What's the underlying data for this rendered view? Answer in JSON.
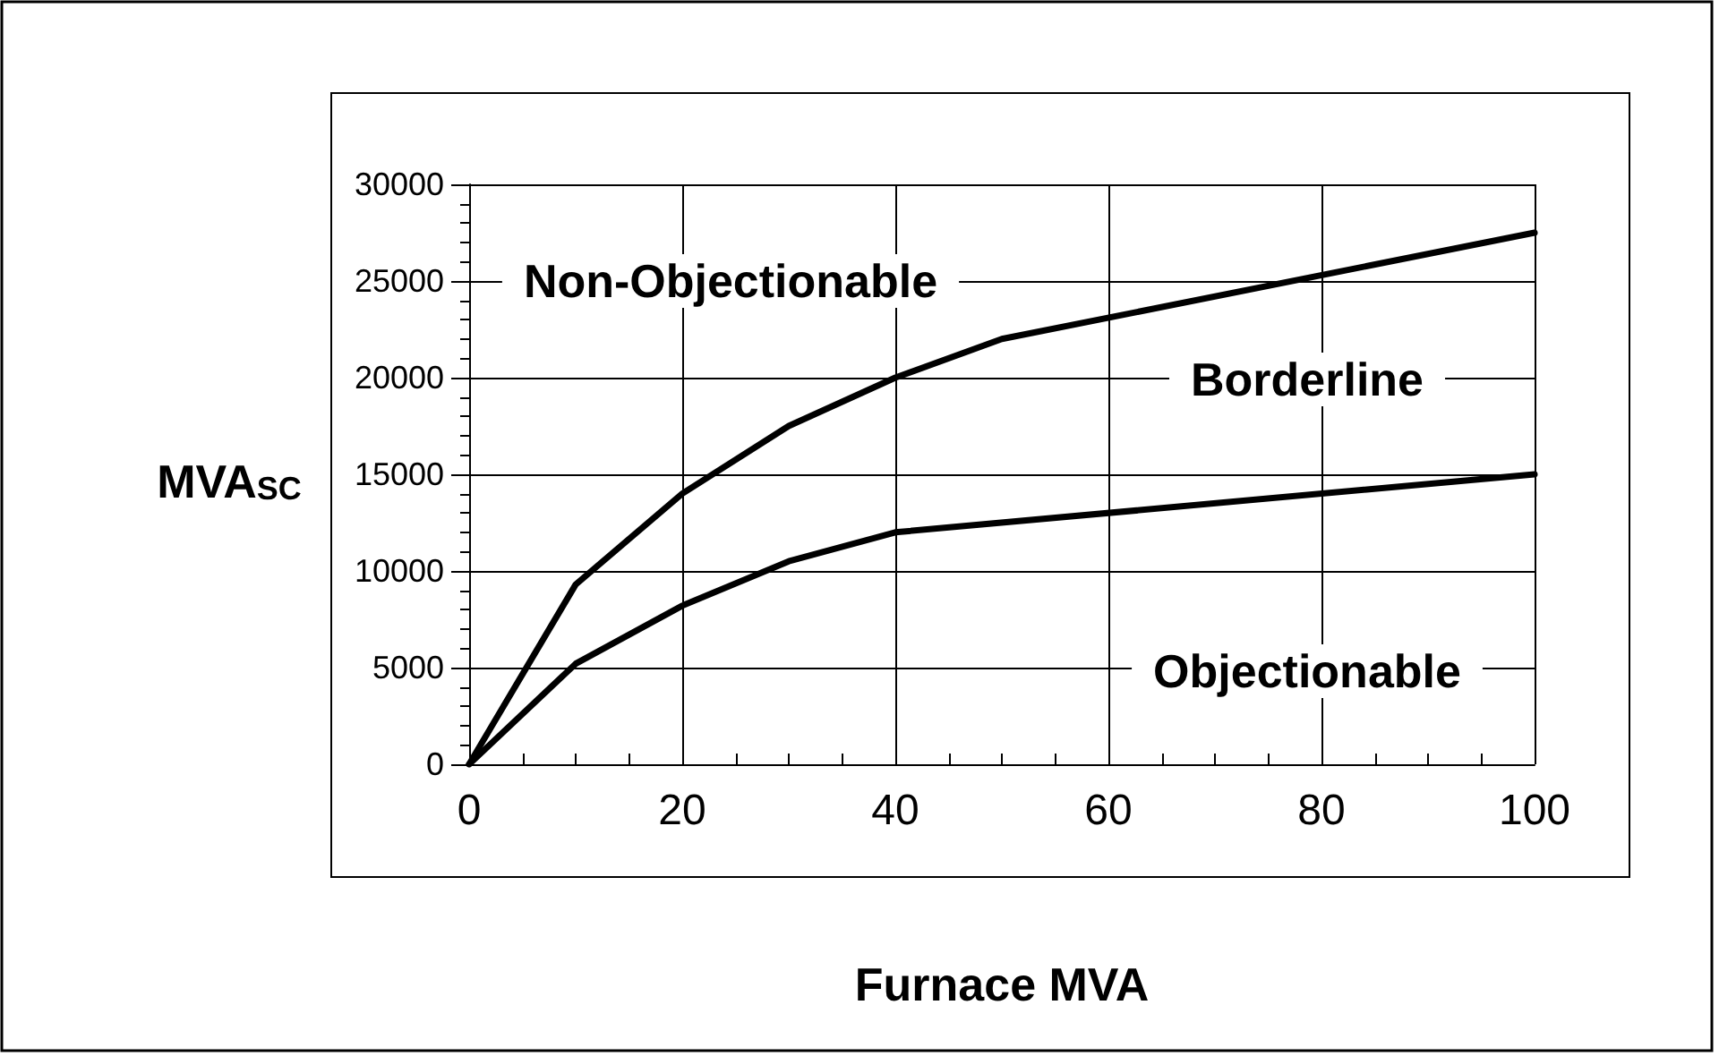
{
  "chart_data": {
    "type": "line",
    "xlabel": "Furnace MVA",
    "ylabel": "MVA$_{SC}$",
    "xlim": [
      0,
      100
    ],
    "xticks": [
      0,
      20,
      40,
      60,
      80,
      100
    ],
    "ylim": [
      0,
      30000
    ],
    "yticks": [
      0,
      5000,
      10000,
      15000,
      20000,
      25000,
      30000
    ],
    "grid": true,
    "marker": "none",
    "line_style": "solid",
    "series": [
      {
        "color": "#000000",
        "x": [
          0,
          10,
          20,
          30,
          40,
          50,
          100
        ],
        "values": [
          0,
          9300,
          14000,
          17500,
          20000,
          22000,
          27500
        ]
      },
      {
        "color": "#000000",
        "x": [
          0,
          10,
          20,
          30,
          40,
          100
        ],
        "values": [
          0,
          5200,
          8200,
          10500,
          12000,
          15000
        ]
      }
    ],
    "annotations": [
      "Non-Objectionable",
      "Borderline",
      "Objectionable"
    ]
  }
}
